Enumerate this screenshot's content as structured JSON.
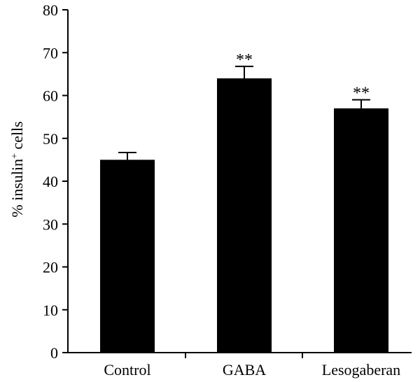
{
  "chart_data": {
    "type": "bar",
    "title": "",
    "xlabel": "",
    "ylabel": "% insulin",
    "ylabel_superscript": "+",
    "ylabel_suffix": " cells",
    "categories": [
      "Control",
      "GABA",
      "Lesogaberan"
    ],
    "values": [
      45,
      64,
      57
    ],
    "errors": [
      1.7,
      2.8,
      2.0
    ],
    "annotations": [
      "",
      "**",
      "**"
    ],
    "ylim": [
      0,
      80
    ],
    "yticks": [
      0,
      10,
      20,
      30,
      40,
      50,
      60,
      70,
      80
    ],
    "bar_color": "#000000",
    "grid": false,
    "legend": "none"
  }
}
